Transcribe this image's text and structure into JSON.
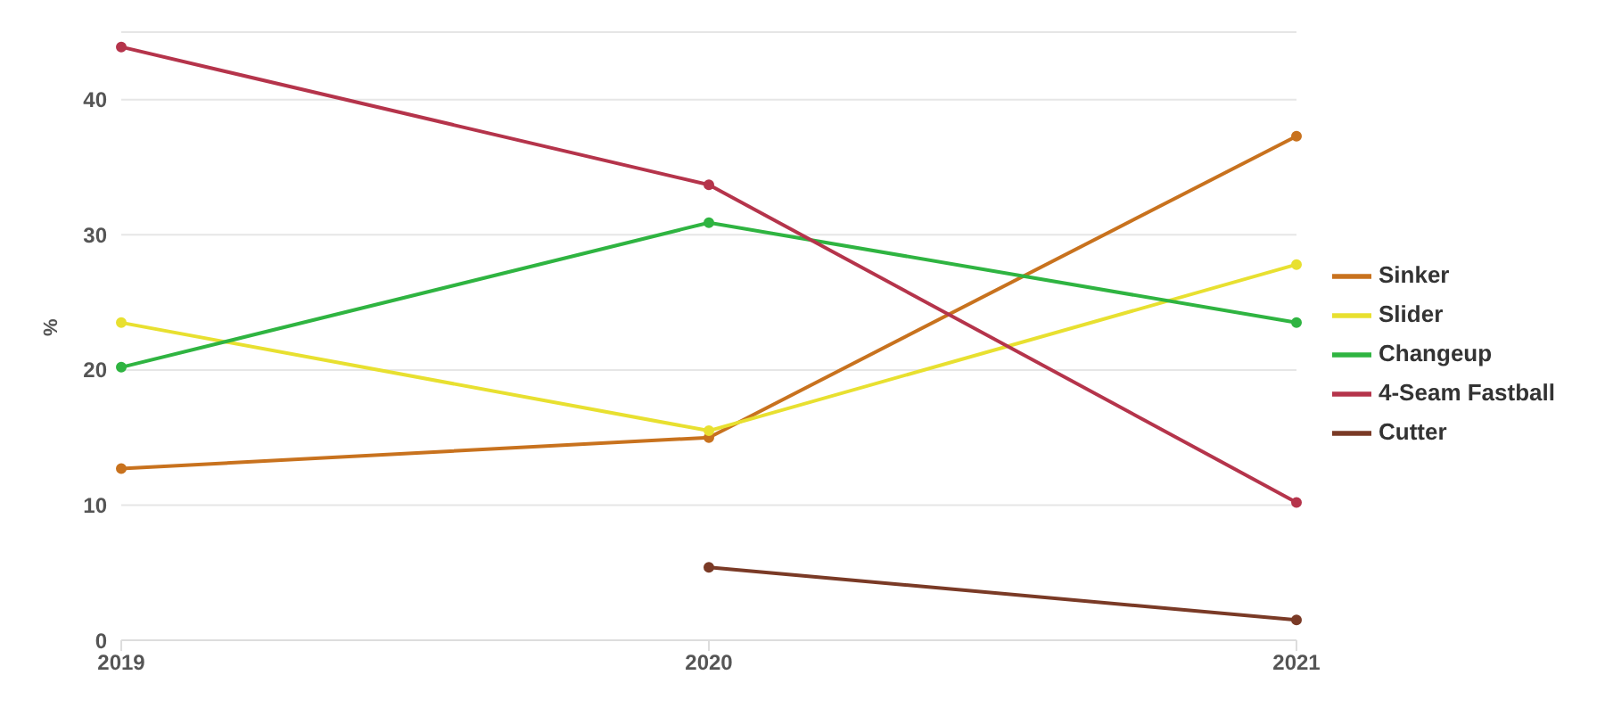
{
  "chart_data": {
    "type": "line",
    "ylabel": "%",
    "categories": [
      "2019",
      "2020",
      "2021"
    ],
    "series": [
      {
        "name": "Sinker",
        "color": "#c8721e",
        "values": [
          12.7,
          15.0,
          37.3
        ]
      },
      {
        "name": "Slider",
        "color": "#e8e030",
        "values": [
          23.5,
          15.5,
          27.8
        ]
      },
      {
        "name": "Changeup",
        "color": "#2fb441",
        "values": [
          20.2,
          30.9,
          23.5
        ]
      },
      {
        "name": "4-Seam Fastball",
        "color": "#b5344b",
        "values": [
          43.9,
          33.7,
          10.2
        ]
      },
      {
        "name": "Cutter",
        "color": "#7a3a26",
        "values": [
          null,
          5.4,
          1.5
        ]
      }
    ],
    "ylim": [
      0,
      45
    ],
    "yticks": [
      0,
      10,
      20,
      30,
      40
    ],
    "grid": "y",
    "legend": "right",
    "marker": "circle"
  }
}
